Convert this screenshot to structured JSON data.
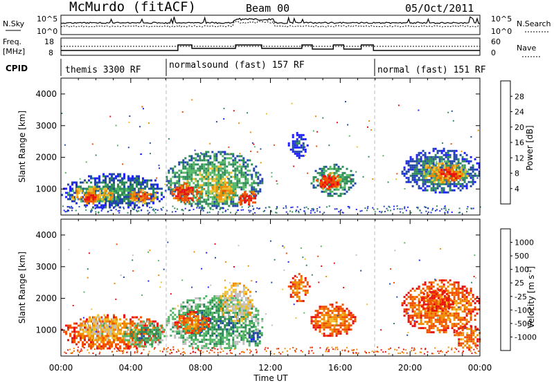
{
  "header": {
    "station": "McMurdo (fitACF)",
    "beam": "Beam 00",
    "date": "05/Oct/2011"
  },
  "top_panel": {
    "left_label": "N.Sky",
    "right_label": "N.Search",
    "left_ticks": [
      "10^5",
      "10^0"
    ],
    "right_ticks": [
      "10^5",
      "10^0"
    ]
  },
  "freq_panel": {
    "left_label_1": "Freq.",
    "left_label_2": "[MHz]",
    "left_ticks": [
      "18",
      "8"
    ],
    "right_label": "Nave",
    "right_ticks": [
      "60",
      "0"
    ]
  },
  "cpid": {
    "label": "CPID",
    "segments": [
      "themis 3300 RF",
      "normalsound (fast) 157 RF",
      "normal (fast) 151 RF"
    ],
    "segment_starts_hours": [
      0,
      6,
      18
    ]
  },
  "colors": {
    "power": [
      "#1f1fff",
      "#2148a8",
      "#2e8b57",
      "#55b866",
      "#f0c030",
      "#f08c00",
      "#f05000",
      "#e81010"
    ],
    "velocity": [
      "#e81010",
      "#f05000",
      "#f08c00",
      "#f0c030",
      "#c0c0c0",
      "#55b866",
      "#2e8b57",
      "#2148a8",
      "#1f1fff"
    ]
  },
  "power_colorbar": {
    "label": "Power [dB]",
    "ticks": [
      "4",
      "8",
      "12",
      "16",
      "20",
      "24",
      "28"
    ]
  },
  "velocity_colorbar": {
    "label_main": "Velocity [m s",
    "label_exp": "-1",
    "label_end": "]",
    "ticks": [
      "1000",
      "500",
      "100",
      "25",
      "-25",
      "-100",
      "-500",
      "-1000"
    ]
  },
  "chart_data": [
    {
      "type": "heatmap",
      "name": "power",
      "ylabel": "Slant Range [km]",
      "xlim": [
        0,
        24
      ],
      "ylim": [
        180,
        4500
      ],
      "yticks": [
        "1000",
        "2000",
        "3000",
        "4000"
      ],
      "xticks": [
        "00:00",
        "04:00",
        "08:00",
        "12:00",
        "16:00",
        "20:00",
        "00:00"
      ],
      "regions": [
        {
          "t": [
            0.0,
            6.0
          ],
          "r": [
            400,
            1500
          ],
          "level": 2
        },
        {
          "t": [
            0.4,
            3.2
          ],
          "r": [
            600,
            1100
          ],
          "level": 5
        },
        {
          "t": [
            1.2,
            2.0
          ],
          "r": [
            550,
            900
          ],
          "level": 7
        },
        {
          "t": [
            3.8,
            5.4
          ],
          "r": [
            600,
            1000
          ],
          "level": 6
        },
        {
          "t": [
            6.0,
            11.5
          ],
          "r": [
            400,
            2200
          ],
          "level": 3
        },
        {
          "t": [
            6.3,
            8.0
          ],
          "r": [
            600,
            1200
          ],
          "level": 7
        },
        {
          "t": [
            8.4,
            10.0
          ],
          "r": [
            600,
            1300
          ],
          "level": 5
        },
        {
          "t": [
            10.0,
            11.2
          ],
          "r": [
            450,
            1000
          ],
          "level": 7
        },
        {
          "t": [
            13.0,
            14.1
          ],
          "r": [
            2000,
            2800
          ],
          "level": 1
        },
        {
          "t": [
            14.3,
            16.8
          ],
          "r": [
            800,
            1800
          ],
          "level": 3
        },
        {
          "t": [
            14.6,
            16.0
          ],
          "r": [
            1000,
            1500
          ],
          "level": 7
        },
        {
          "t": [
            19.5,
            24.0
          ],
          "r": [
            900,
            2300
          ],
          "level": 2
        },
        {
          "t": [
            20.5,
            23.3
          ],
          "r": [
            1200,
            1900
          ],
          "level": 5
        },
        {
          "t": [
            21.5,
            23.0
          ],
          "r": [
            1300,
            1700
          ],
          "level": 7
        }
      ]
    },
    {
      "type": "heatmap",
      "name": "velocity",
      "ylabel": "Slant Range [km]",
      "xlabel": "Time UT",
      "xlim": [
        0,
        24
      ],
      "ylim": [
        180,
        4500
      ],
      "yticks": [
        "1000",
        "2000",
        "3000",
        "4000"
      ],
      "xticks": [
        "00:00",
        "04:00",
        "08:00",
        "12:00",
        "16:00",
        "20:00",
        "00:00"
      ],
      "regions": [
        {
          "t": [
            0.0,
            6.0
          ],
          "r": [
            400,
            1500
          ],
          "level": 2
        },
        {
          "t": [
            1.0,
            3.5
          ],
          "r": [
            700,
            1500
          ],
          "level": 4
        },
        {
          "t": [
            3.5,
            6.0
          ],
          "r": [
            500,
            1300
          ],
          "level": 6
        },
        {
          "t": [
            6.0,
            11.5
          ],
          "r": [
            400,
            2100
          ],
          "level": 6
        },
        {
          "t": [
            6.5,
            8.5
          ],
          "r": [
            900,
            1600
          ],
          "level": 2
        },
        {
          "t": [
            9.0,
            11.0
          ],
          "r": [
            1300,
            2500
          ],
          "level": 4
        },
        {
          "t": [
            10.5,
            11.5
          ],
          "r": [
            500,
            1200
          ],
          "level": 7
        },
        {
          "t": [
            13.0,
            14.2
          ],
          "r": [
            1900,
            2800
          ],
          "level": 2
        },
        {
          "t": [
            14.3,
            16.8
          ],
          "r": [
            800,
            1900
          ],
          "level": 2
        },
        {
          "t": [
            19.5,
            24.0
          ],
          "r": [
            900,
            2600
          ],
          "level": 2
        },
        {
          "t": [
            20.5,
            22.5
          ],
          "r": [
            1600,
            2300
          ],
          "level": 1
        },
        {
          "t": [
            22.5,
            24.0
          ],
          "r": [
            400,
            1200
          ],
          "level": 2
        }
      ]
    }
  ]
}
